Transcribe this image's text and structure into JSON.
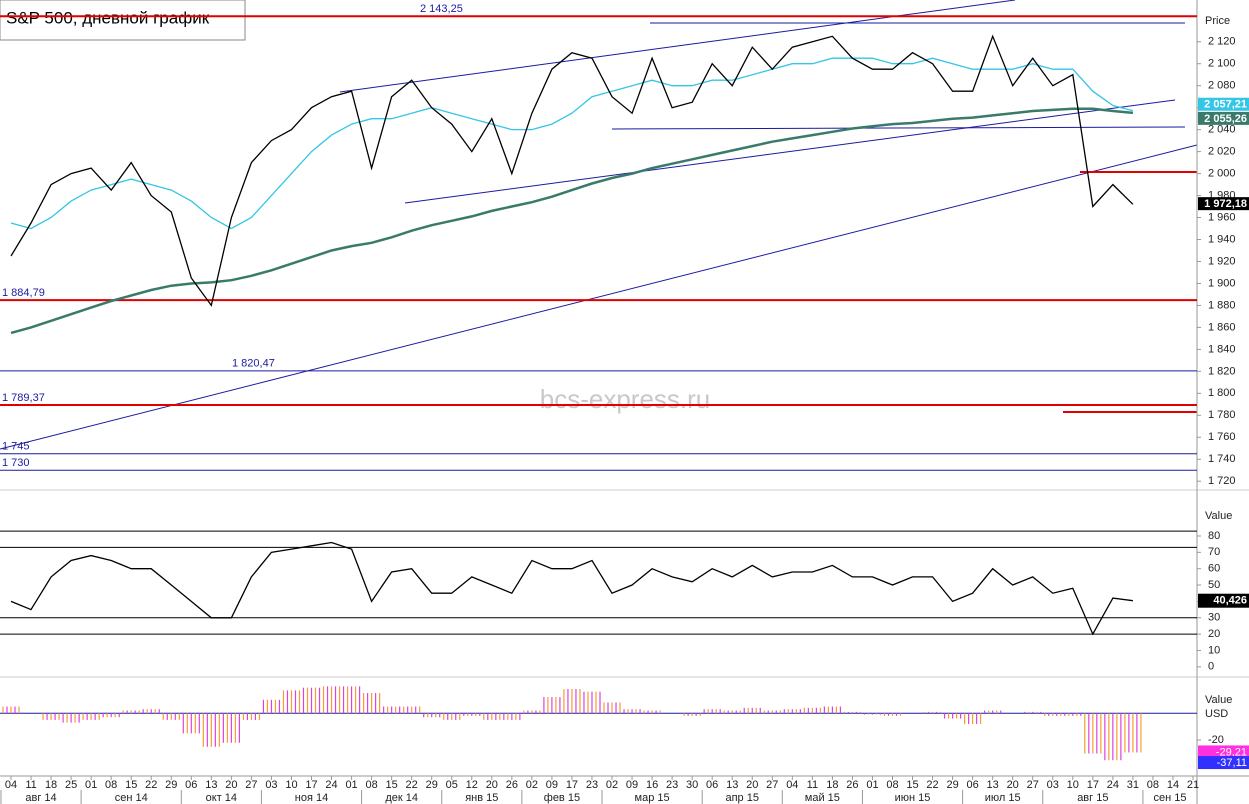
{
  "chart_data": [
    {
      "type": "line",
      "title": "S&P 500, дневной график",
      "watermark": "bcs-express.ru",
      "axis_title": "Price",
      "ylim": [
        1712,
        2158
      ],
      "yticks": [
        {
          "value": 2120,
          "label": "2 120"
        },
        {
          "value": 2100,
          "label": "2 100"
        },
        {
          "value": 2080,
          "label": "2 080"
        },
        {
          "value": 2060,
          "label": "2 060"
        },
        {
          "value": 2040,
          "label": "2 040"
        },
        {
          "value": 2020,
          "label": "2 020"
        },
        {
          "value": 2000,
          "label": "2 000"
        },
        {
          "value": 1980,
          "label": "1 980"
        },
        {
          "value": 1960,
          "label": "1 960"
        },
        {
          "value": 1940,
          "label": "1 940"
        },
        {
          "value": 1920,
          "label": "1 920"
        },
        {
          "value": 1900,
          "label": "1 900"
        },
        {
          "value": 1880,
          "label": "1 880"
        },
        {
          "value": 1860,
          "label": "1 860"
        },
        {
          "value": 1840,
          "label": "1 840"
        },
        {
          "value": 1820,
          "label": "1 820"
        },
        {
          "value": 1800,
          "label": "1 800"
        },
        {
          "value": 1780,
          "label": "1 780"
        },
        {
          "value": 1760,
          "label": "1 760"
        },
        {
          "value": 1740,
          "label": "1 740"
        },
        {
          "value": 1720,
          "label": "1 720"
        }
      ],
      "categories": [
        "04",
        "11",
        "18",
        "25",
        "01",
        "08",
        "15",
        "22",
        "29",
        "06",
        "13",
        "20",
        "27",
        "03",
        "10",
        "17",
        "24",
        "01",
        "08",
        "15",
        "22",
        "29",
        "05",
        "12",
        "20",
        "26",
        "02",
        "09",
        "17",
        "23",
        "02",
        "09",
        "16",
        "23",
        "30",
        "06",
        "13",
        "20",
        "27",
        "04",
        "11",
        "18",
        "26",
        "01",
        "08",
        "15",
        "22",
        "29",
        "06",
        "13",
        "20",
        "27",
        "03",
        "10",
        "17",
        "24",
        "31",
        "08",
        "14",
        "21"
      ],
      "months": [
        "авг 14",
        "сен 14",
        "окт 14",
        "ноя 14",
        "дек 14",
        "янв 15",
        "фев 15",
        "мар 15",
        "апр 15",
        "май 15",
        "июн 15",
        "июл 15",
        "авг 15",
        "сен 15"
      ],
      "series": [
        {
          "color": "#000000",
          "values": [
            1925,
            1955,
            1990,
            2000,
            2005,
            1985,
            2010,
            1980,
            1965,
            1905,
            1880,
            1960,
            2010,
            2030,
            2040,
            2060,
            2070,
            2075,
            2005,
            2070,
            2085,
            2060,
            2045,
            2020,
            2050,
            2000,
            2055,
            2095,
            2110,
            2105,
            2070,
            2055,
            2105,
            2060,
            2065,
            2100,
            2080,
            2115,
            2095,
            2115,
            2120,
            2125,
            2105,
            2095,
            2095,
            2110,
            2100,
            2075,
            2075,
            2125,
            2080,
            2105,
            2080,
            2090,
            1970,
            1990,
            1972,
            null,
            null,
            null
          ]
        },
        {
          "color": "#33c6e6",
          "values": [
            1955,
            1950,
            1960,
            1975,
            1985,
            1990,
            1995,
            1990,
            1985,
            1975,
            1960,
            1950,
            1960,
            1980,
            2000,
            2020,
            2035,
            2045,
            2050,
            2050,
            2055,
            2060,
            2055,
            2050,
            2045,
            2040,
            2040,
            2045,
            2055,
            2070,
            2075,
            2080,
            2085,
            2080,
            2080,
            2085,
            2085,
            2090,
            2095,
            2100,
            2100,
            2105,
            2105,
            2105,
            2100,
            2100,
            2105,
            2100,
            2095,
            2095,
            2095,
            2100,
            2095,
            2095,
            2075,
            2062,
            2057.21,
            null,
            null,
            null
          ]
        },
        {
          "color": "#3a7a6a",
          "values": [
            1855,
            1860,
            1866,
            1872,
            1878,
            1884,
            1889,
            1894,
            1898,
            1900,
            1901,
            1903,
            1907,
            1912,
            1918,
            1924,
            1930,
            1934,
            1937,
            1942,
            1948,
            1953,
            1957,
            1961,
            1966,
            1970,
            1974,
            1979,
            1985,
            1991,
            1996,
            2000,
            2005,
            2009,
            2013,
            2017,
            2021,
            2025,
            2029,
            2032,
            2035,
            2038,
            2041,
            2043,
            2045,
            2046,
            2048,
            2050,
            2051,
            2053,
            2055,
            2057,
            2058,
            2059,
            2059,
            2057,
            2055.26,
            null,
            null,
            null
          ]
        }
      ],
      "levels": [
        {
          "value": 2143.25,
          "label": "2 143,25",
          "color": "#e00000"
        },
        {
          "value": 1884.79,
          "label": "1 884,79",
          "color": "#e00000"
        },
        {
          "value": 1820.47,
          "label": "1 820,47",
          "color": "#1a1aa0"
        },
        {
          "value": 1789.37,
          "label": "1 789,37",
          "color": "#e00000"
        },
        {
          "value": 1745,
          "label": "1 745",
          "color": "#1a1aa0"
        },
        {
          "value": 1730,
          "label": "1 730",
          "color": "#1a1aa0"
        }
      ],
      "last_values": [
        {
          "value": 2057.21,
          "label": "2 057,21",
          "color": "#33c6e6"
        },
        {
          "value": 2055.26,
          "label": "2 055,26",
          "color": "#3a7a6a"
        },
        {
          "value": 1972.18,
          "label": "1 972,18",
          "color": "#000000"
        }
      ]
    },
    {
      "type": "line",
      "axis_title": "Value",
      "ylim": [
        -5,
        102
      ],
      "yticks": [
        80,
        70,
        60,
        50,
        40,
        30,
        20,
        10,
        0
      ],
      "levels": [
        83,
        73,
        30,
        20
      ],
      "series": [
        {
          "color": "#000000",
          "values": [
            40,
            35,
            55,
            65,
            68,
            65,
            60,
            60,
            50,
            40,
            30,
            30,
            55,
            70,
            72,
            74,
            76,
            72,
            40,
            58,
            60,
            45,
            45,
            55,
            50,
            45,
            65,
            60,
            60,
            65,
            45,
            50,
            60,
            55,
            52,
            60,
            55,
            62,
            55,
            58,
            58,
            62,
            55,
            55,
            50,
            55,
            55,
            40,
            45,
            60,
            50,
            55,
            45,
            48,
            20,
            42,
            40.426,
            null,
            null,
            null
          ]
        }
      ],
      "last_value": {
        "value": 40.426,
        "label": "40,426"
      }
    },
    {
      "type": "bar",
      "axis_title": "Value",
      "axis_unit": "USD",
      "ylim": [
        -46,
        21
      ],
      "yticks": [
        -20
      ],
      "colors": [
        "#f0a030",
        "#e040e0"
      ],
      "values": [
        5,
        0,
        -5,
        -7,
        -5,
        -3,
        2,
        3,
        -5,
        -15,
        -25,
        -22,
        -5,
        10,
        17,
        19,
        20,
        20,
        15,
        5,
        5,
        -3,
        -5,
        -2,
        -5,
        -5,
        2,
        12,
        18,
        16,
        8,
        3,
        2,
        0,
        -2,
        3,
        2,
        4,
        2,
        3,
        4,
        5,
        1,
        -1,
        -2,
        0,
        1,
        -4,
        -8,
        2,
        0,
        1,
        -2,
        -2,
        -30,
        -35,
        -29.21,
        null,
        null,
        null
      ],
      "last_values": [
        {
          "value": -29.21,
          "label": "-29,21",
          "color": "#ff30e0"
        },
        {
          "value": -37.11,
          "label": "-37,11",
          "color": "#3030ff"
        }
      ]
    }
  ]
}
